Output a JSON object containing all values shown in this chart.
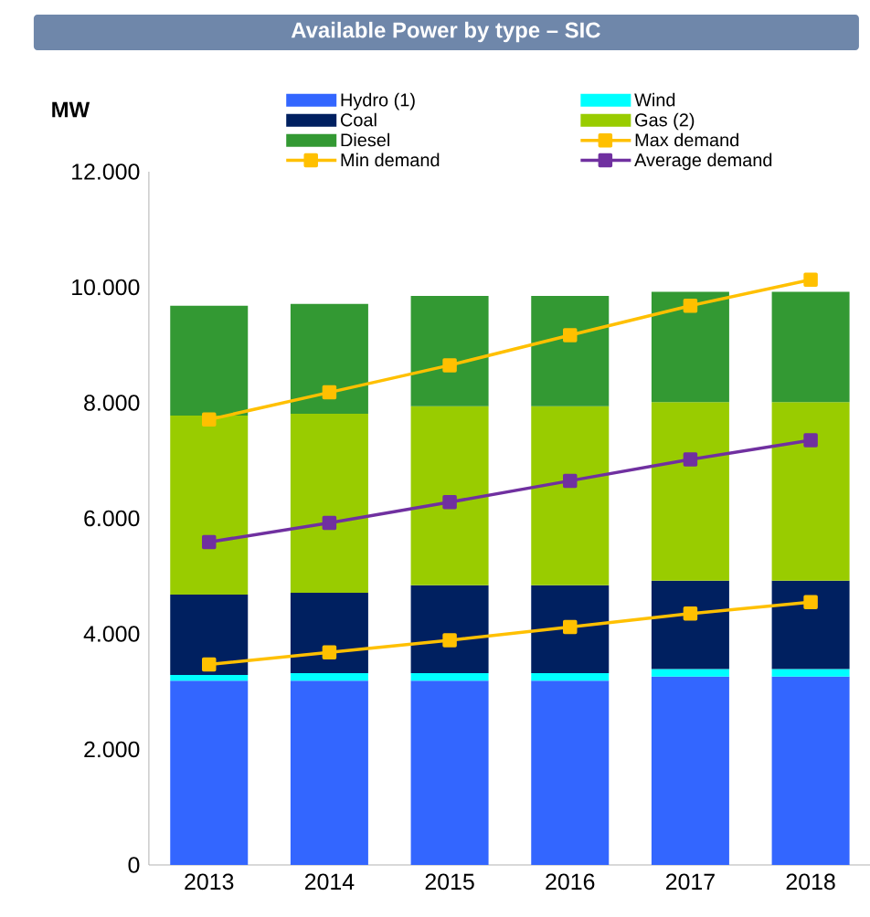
{
  "chart_data": {
    "type": "bar",
    "stacked": true,
    "title": "Available Power by type – SIC",
    "ylabel": "MW",
    "categories": [
      "2013",
      "2014",
      "2015",
      "2016",
      "2017",
      "2018"
    ],
    "series": [
      {
        "name": "Hydro (1)",
        "color": "#3366ff",
        "values": [
          3190,
          3190,
          3190,
          3190,
          3260,
          3260
        ]
      },
      {
        "name": "Wind",
        "color": "#00ffff",
        "values": [
          100,
          130,
          130,
          130,
          130,
          130
        ]
      },
      {
        "name": "Coal",
        "color": "#002060",
        "values": [
          1390,
          1390,
          1520,
          1520,
          1530,
          1530
        ]
      },
      {
        "name": "Gas (2)",
        "color": "#99cc00",
        "values": [
          3100,
          3100,
          3100,
          3100,
          3090,
          3090
        ]
      },
      {
        "name": "Diesel",
        "color": "#339933",
        "values": [
          1900,
          1900,
          1910,
          1910,
          1910,
          1910
        ]
      },
      {
        "name": "Max demand",
        "type": "line",
        "color": "#ffc000",
        "values": [
          7710,
          8180,
          8650,
          9170,
          9680,
          10130
        ]
      },
      {
        "name": "Min demand",
        "type": "line",
        "color": "#ffc000",
        "values": [
          3470,
          3680,
          3890,
          4120,
          4350,
          4550
        ]
      },
      {
        "name": "Average demand",
        "type": "line",
        "color": "#7030a0",
        "values": [
          5590,
          5920,
          6280,
          6650,
          7020,
          7350
        ]
      }
    ],
    "ylim": [
      0,
      12000
    ],
    "yticks": [
      0,
      {
        "value": 2000,
        "label": "2.000"
      },
      {
        "value": 4000,
        "label": "4.000"
      },
      {
        "value": 6000,
        "label": "6.000"
      },
      {
        "value": 8000,
        "label": "8.000"
      },
      {
        "value": 10000,
        "label": "10.000"
      },
      {
        "value": 12000,
        "label": "12.000"
      }
    ],
    "legend": "top",
    "marker": "square",
    "line_style": "solid"
  }
}
